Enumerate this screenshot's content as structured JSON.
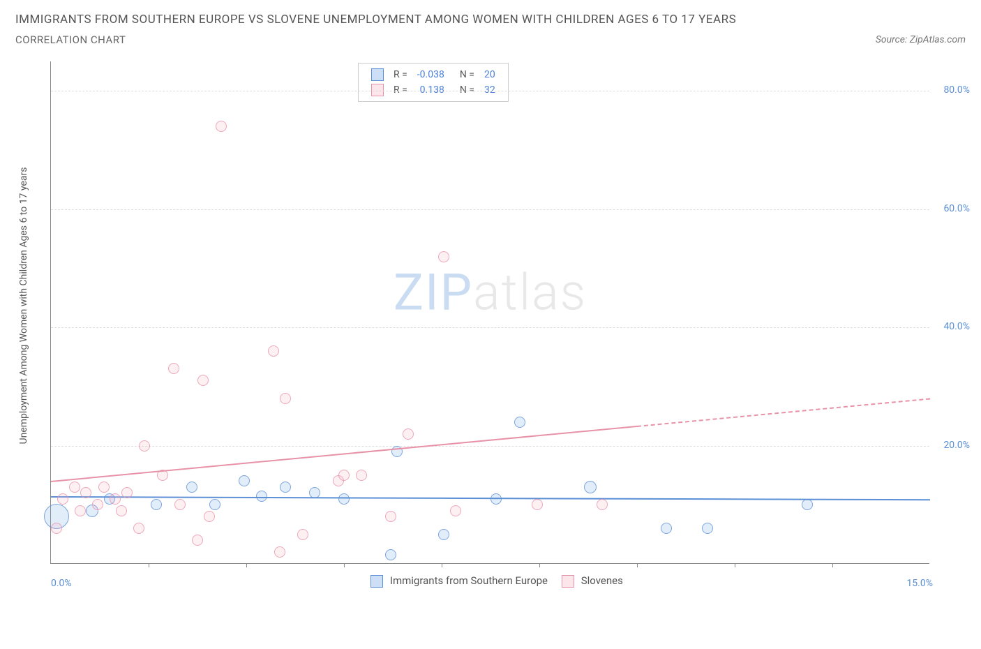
{
  "title": "IMMIGRANTS FROM SOUTHERN EUROPE VS SLOVENE UNEMPLOYMENT AMONG WOMEN WITH CHILDREN AGES 6 TO 17 YEARS",
  "subtitle": "CORRELATION CHART",
  "source": "Source: ZipAtlas.com",
  "watermark": {
    "part1": "ZIP",
    "part2": "atlas"
  },
  "chart": {
    "type": "scatter",
    "background_color": "#ffffff",
    "grid_color": "#dddddd",
    "axis_color": "#888888",
    "axis_label_color": "#555555",
    "tick_label_color": "#5b8fd6",
    "tick_fontsize": 14,
    "ylabel": "Unemployment Among Women with Children Ages 6 to 17 years",
    "label_fontsize": 14,
    "xlim": [
      0,
      15
    ],
    "ylim": [
      0,
      85
    ],
    "yticks": [
      {
        "value": 20,
        "label": "20.0%"
      },
      {
        "value": 40,
        "label": "40.0%"
      },
      {
        "value": 60,
        "label": "60.0%"
      },
      {
        "value": 80,
        "label": "80.0%"
      }
    ],
    "xtick_labels": {
      "min": "0.0%",
      "max": "15.0%"
    },
    "xtick_positions": [
      1.67,
      3.33,
      5.0,
      6.67,
      8.33,
      10.0,
      11.67,
      13.33
    ],
    "marker_style": "circle",
    "marker_border_width": 1.5,
    "marker_fill_opacity": 0.25,
    "series": [
      {
        "id": "immigrants",
        "label": "Immigrants from Southern Europe",
        "color": "#6fa4e8",
        "border_color": "#5b8fd6",
        "R": "-0.038",
        "N": "20",
        "trend": {
          "x1": 0,
          "y1": 11.5,
          "x2": 15,
          "y2": 11.0,
          "solid_until_x": 15,
          "line_width": 2
        },
        "points": [
          {
            "x": 0.1,
            "y": 8,
            "r": 18
          },
          {
            "x": 0.7,
            "y": 9,
            "r": 9
          },
          {
            "x": 1.0,
            "y": 11,
            "r": 8
          },
          {
            "x": 1.8,
            "y": 10,
            "r": 8
          },
          {
            "x": 2.4,
            "y": 13,
            "r": 8
          },
          {
            "x": 2.8,
            "y": 10,
            "r": 8
          },
          {
            "x": 3.3,
            "y": 14,
            "r": 8
          },
          {
            "x": 3.6,
            "y": 11.5,
            "r": 8
          },
          {
            "x": 4.0,
            "y": 13,
            "r": 8
          },
          {
            "x": 4.5,
            "y": 12,
            "r": 8
          },
          {
            "x": 5.0,
            "y": 11,
            "r": 8
          },
          {
            "x": 5.8,
            "y": 1.5,
            "r": 8
          },
          {
            "x": 5.9,
            "y": 19,
            "r": 8
          },
          {
            "x": 6.7,
            "y": 5,
            "r": 8
          },
          {
            "x": 7.6,
            "y": 11,
            "r": 8
          },
          {
            "x": 8.0,
            "y": 24,
            "r": 8
          },
          {
            "x": 9.2,
            "y": 13,
            "r": 9
          },
          {
            "x": 10.5,
            "y": 6,
            "r": 8
          },
          {
            "x": 11.2,
            "y": 6,
            "r": 8
          },
          {
            "x": 12.9,
            "y": 10,
            "r": 8
          }
        ]
      },
      {
        "id": "slovenes",
        "label": "Slovenes",
        "color": "#f5b5c5",
        "border_color": "#e892a8",
        "R": "0.138",
        "N": "32",
        "trend": {
          "x1": 0,
          "y1": 14,
          "x2": 15,
          "y2": 28,
          "solid_until_x": 10,
          "line_width": 2
        },
        "points": [
          {
            "x": 0.1,
            "y": 6,
            "r": 8
          },
          {
            "x": 0.2,
            "y": 11,
            "r": 8
          },
          {
            "x": 0.4,
            "y": 13,
            "r": 8
          },
          {
            "x": 0.5,
            "y": 9,
            "r": 8
          },
          {
            "x": 0.6,
            "y": 12,
            "r": 8
          },
          {
            "x": 0.8,
            "y": 10,
            "r": 8
          },
          {
            "x": 0.9,
            "y": 13,
            "r": 8
          },
          {
            "x": 1.1,
            "y": 11,
            "r": 8
          },
          {
            "x": 1.2,
            "y": 9,
            "r": 8
          },
          {
            "x": 1.3,
            "y": 12,
            "r": 8
          },
          {
            "x": 1.5,
            "y": 6,
            "r": 8
          },
          {
            "x": 1.6,
            "y": 20,
            "r": 8
          },
          {
            "x": 2.1,
            "y": 33,
            "r": 8
          },
          {
            "x": 2.2,
            "y": 10,
            "r": 8
          },
          {
            "x": 2.5,
            "y": 4,
            "r": 8
          },
          {
            "x": 2.6,
            "y": 31,
            "r": 8
          },
          {
            "x": 2.7,
            "y": 8,
            "r": 8
          },
          {
            "x": 2.9,
            "y": 74,
            "r": 8
          },
          {
            "x": 3.8,
            "y": 36,
            "r": 8
          },
          {
            "x": 3.9,
            "y": 2,
            "r": 8
          },
          {
            "x": 4.0,
            "y": 28,
            "r": 8
          },
          {
            "x": 4.3,
            "y": 5,
            "r": 8
          },
          {
            "x": 4.9,
            "y": 14,
            "r": 8
          },
          {
            "x": 5.0,
            "y": 15,
            "r": 8
          },
          {
            "x": 5.3,
            "y": 15,
            "r": 8
          },
          {
            "x": 5.8,
            "y": 8,
            "r": 8
          },
          {
            "x": 6.1,
            "y": 22,
            "r": 8
          },
          {
            "x": 6.7,
            "y": 52,
            "r": 8
          },
          {
            "x": 6.9,
            "y": 9,
            "r": 8
          },
          {
            "x": 8.3,
            "y": 10,
            "r": 8
          },
          {
            "x": 9.4,
            "y": 10,
            "r": 8
          },
          {
            "x": 1.9,
            "y": 15,
            "r": 8
          }
        ]
      }
    ],
    "legend_box": {
      "R_label": "R =",
      "N_label": "N =",
      "value_color": "#4a7fd6"
    }
  }
}
